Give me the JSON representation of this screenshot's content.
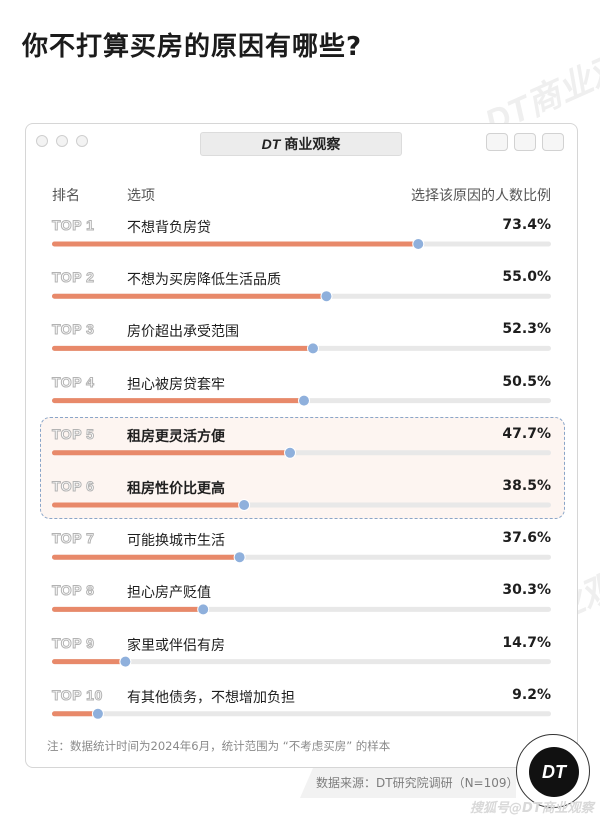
{
  "headline": "你不打算买房的原因有哪些?",
  "watermark_text": "DT商业观察",
  "window": {
    "tab_title": "商业观察",
    "tab_logo": "DT"
  },
  "columns": {
    "rank": "排名",
    "option": "选项",
    "ratio": "选择该原因的人数比例"
  },
  "chart_data": {
    "type": "bar",
    "orientation": "horizontal",
    "xlim": [
      0,
      100
    ],
    "unit": "%",
    "categories": [
      "不想背负房贷",
      "不想为买房降低生活品质",
      "房价超出承受范围",
      "担心被房贷套牢",
      "租房更灵活方便",
      "租房性价比更高",
      "可能换城市生活",
      "担心房产贬值",
      "家里或伴侣有房",
      "有其他债务，不想增加负担"
    ],
    "ranks": [
      "TOP 1",
      "TOP 2",
      "TOP 3",
      "TOP 4",
      "TOP 5",
      "TOP 6",
      "TOP 7",
      "TOP 8",
      "TOP 9",
      "TOP 10"
    ],
    "values": [
      73.4,
      55.0,
      52.3,
      50.5,
      47.7,
      38.5,
      37.6,
      30.3,
      14.7,
      9.2
    ],
    "value_labels": [
      "73.4%",
      "55.0%",
      "52.3%",
      "50.5%",
      "47.7%",
      "38.5%",
      "37.6%",
      "30.3%",
      "14.7%",
      "9.2%"
    ],
    "highlighted": [
      false,
      false,
      false,
      false,
      true,
      true,
      false,
      false,
      false,
      false
    ],
    "colors": {
      "bar": "#e8896a",
      "track": "#e8e8e8",
      "dot": "#8fb0dc",
      "highlight_border": "#8aa5c8",
      "highlight_bg": "#fdf5f1"
    }
  },
  "note": "注：数据统计时间为2024年6月，统计范围为 “不考虑买房” 的样本",
  "source": "数据来源：DT研究院调研（N=109）",
  "badge": "DT",
  "footer_watermark": "搜狐号@DT商业观察"
}
